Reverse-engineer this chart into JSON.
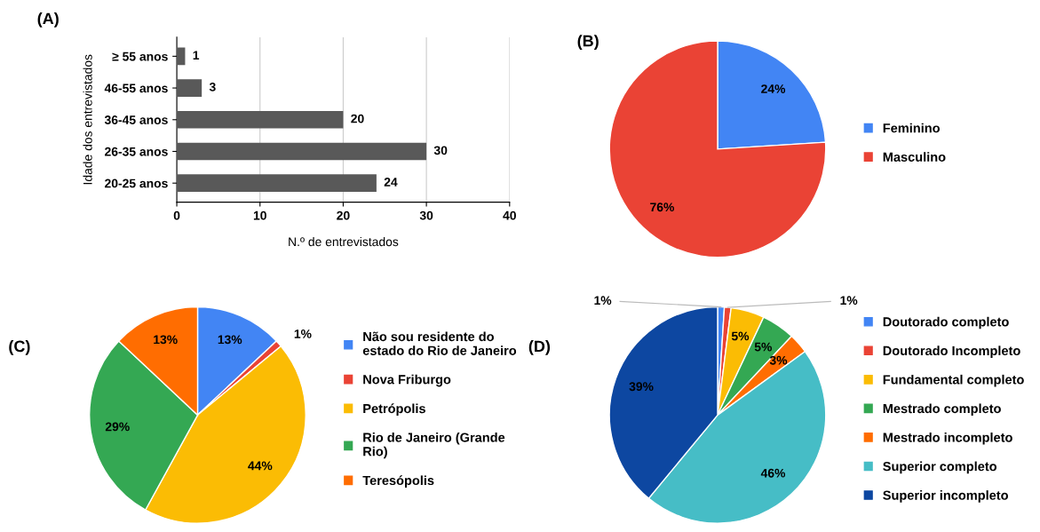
{
  "chart_data": [
    {
      "type": "bar",
      "title": "(A)",
      "orientation": "horizontal",
      "categories": [
        "≥ 55 anos",
        "46-55 anos",
        "36-45 anos",
        "26-35 anos",
        "20-25 anos"
      ],
      "values": [
        1,
        3,
        20,
        30,
        24
      ],
      "color": "#595959",
      "xlim": [
        0,
        40
      ],
      "xticks": [
        0,
        10,
        20,
        30,
        40
      ],
      "grid": "x",
      "xlabel": "N.º de entrevistados",
      "ylabel": "Idade dos entrevistados",
      "data_labels": true
    },
    {
      "type": "pie",
      "title": "(B)",
      "categories": [
        "Feminino",
        "Masculino"
      ],
      "values": [
        24,
        76
      ],
      "value_labels": [
        "24%",
        "76%"
      ],
      "colors": [
        "#4285f4",
        "#ea4335"
      ],
      "legend": "right"
    },
    {
      "type": "pie",
      "title": "(C)",
      "categories": [
        "Não sou residente do\nestado do Rio de Janeiro",
        "Nova Friburgo",
        "Petrópolis",
        "Rio de Janeiro (Grande\nRio)",
        "Teresópolis"
      ],
      "values": [
        13,
        1,
        44,
        29,
        13
      ],
      "value_labels": [
        "13%",
        "1%",
        "44%",
        "29%",
        "13%"
      ],
      "colors": [
        "#4285f4",
        "#ea4335",
        "#fbbc04",
        "#34a853",
        "#ff6d01"
      ],
      "legend": "right"
    },
    {
      "type": "pie",
      "title": "(D)",
      "categories": [
        "Doutorado completo",
        "Doutorado Incompleto",
        "Fundamental completo",
        "Mestrado completo",
        "Mestrado incompleto",
        "Superior completo",
        "Superior incompleto"
      ],
      "values": [
        1,
        1,
        5,
        5,
        3,
        46,
        39
      ],
      "value_labels": [
        "1%",
        "1%",
        "5%",
        "5%",
        "3%",
        "46%",
        "39%"
      ],
      "colors": [
        "#4285f4",
        "#ea4335",
        "#fbbc04",
        "#34a853",
        "#ff6d01",
        "#46bdc6",
        "#0d47a1"
      ],
      "legend": "right"
    }
  ]
}
